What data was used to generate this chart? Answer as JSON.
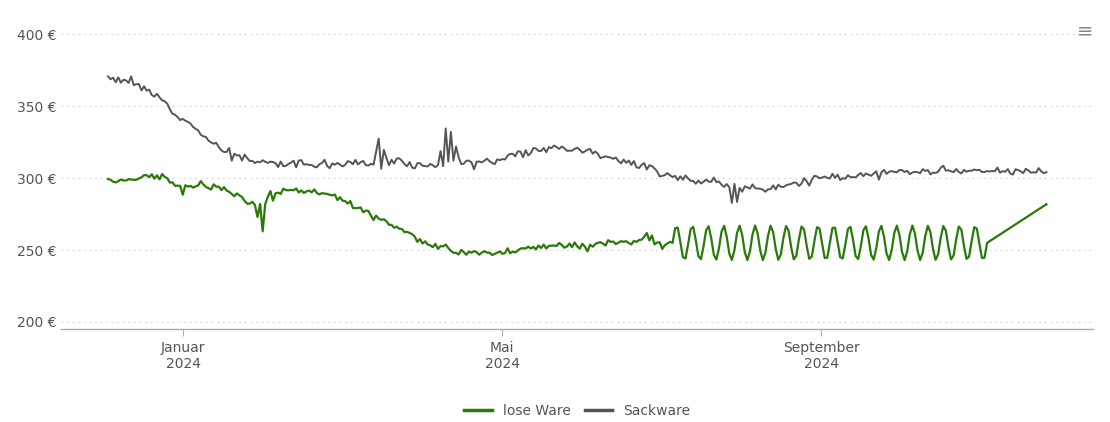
{
  "title": "",
  "xlabel": "",
  "ylabel": "",
  "ylim": [
    195,
    415
  ],
  "yticks": [
    200,
    250,
    300,
    350,
    400
  ],
  "background_color": "#ffffff",
  "grid_color": "#dddddd",
  "lose_ware_color": "#2a7a0a",
  "sackware_color": "#555555",
  "legend_labels": [
    "lose Ware",
    "Sackware"
  ],
  "x_tick_labels": [
    "Januar\n2024",
    "Mai\n2024",
    "September\n2024"
  ],
  "x_tick_positions": [
    0.08,
    0.42,
    0.76
  ]
}
